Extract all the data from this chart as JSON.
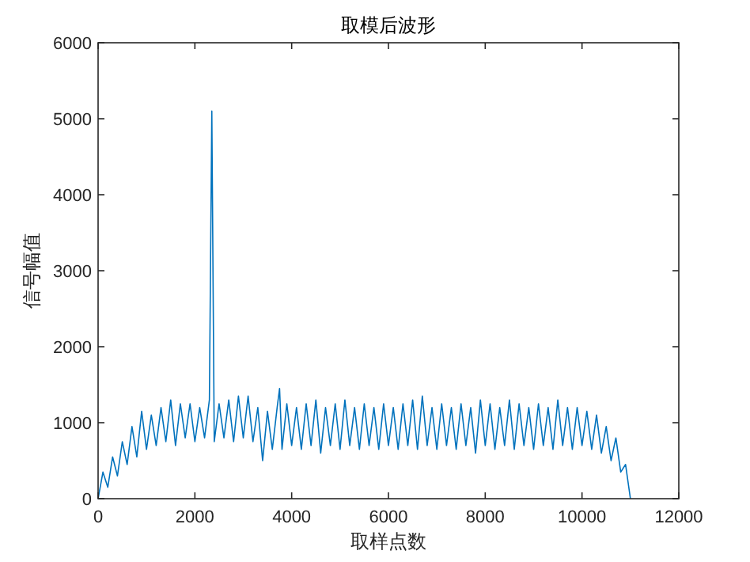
{
  "chart_data": {
    "type": "line",
    "title": "取模后波形",
    "xlabel": "取样点数",
    "ylabel": "信号幅值",
    "x": [
      0,
      100,
      200,
      300,
      400,
      500,
      600,
      700,
      800,
      900,
      1000,
      1100,
      1200,
      1300,
      1400,
      1500,
      1600,
      1700,
      1800,
      1900,
      2000,
      2100,
      2200,
      2300,
      2350,
      2400,
      2500,
      2600,
      2700,
      2800,
      2900,
      3000,
      3100,
      3200,
      3300,
      3400,
      3500,
      3600,
      3700,
      3750,
      3800,
      3900,
      4000,
      4100,
      4200,
      4300,
      4400,
      4500,
      4600,
      4700,
      4800,
      4900,
      5000,
      5100,
      5200,
      5300,
      5400,
      5500,
      5600,
      5700,
      5800,
      5900,
      6000,
      6100,
      6200,
      6300,
      6400,
      6500,
      6600,
      6700,
      6800,
      6900,
      7000,
      7100,
      7200,
      7300,
      7400,
      7500,
      7600,
      7700,
      7800,
      7900,
      8000,
      8100,
      8200,
      8300,
      8400,
      8500,
      8600,
      8700,
      8800,
      8900,
      9000,
      9100,
      9200,
      9300,
      9400,
      9500,
      9600,
      9700,
      9800,
      9900,
      10000,
      10100,
      10200,
      10300,
      10400,
      10500,
      10600,
      10700,
      10800,
      10900,
      11000
    ],
    "values": [
      0,
      350,
      150,
      550,
      300,
      750,
      450,
      950,
      550,
      1150,
      650,
      1100,
      700,
      1200,
      750,
      1300,
      700,
      1250,
      800,
      1250,
      750,
      1200,
      800,
      1300,
      5100,
      750,
      1250,
      800,
      1300,
      750,
      1350,
      800,
      1350,
      750,
      1200,
      500,
      1150,
      650,
      1200,
      1450,
      650,
      1250,
      700,
      1200,
      650,
      1250,
      700,
      1300,
      600,
      1200,
      700,
      1250,
      650,
      1300,
      700,
      1200,
      650,
      1250,
      700,
      1200,
      650,
      1250,
      700,
      1200,
      650,
      1250,
      700,
      1300,
      650,
      1350,
      700,
      1200,
      650,
      1250,
      700,
      1200,
      650,
      1250,
      700,
      1200,
      600,
      1300,
      700,
      1250,
      650,
      1200,
      700,
      1300,
      650,
      1250,
      700,
      1200,
      650,
      1250,
      700,
      1200,
      650,
      1300,
      700,
      1200,
      650,
      1200,
      700,
      1150,
      650,
      1100,
      600,
      950,
      500,
      800,
      350,
      450,
      0
    ],
    "color": "#0072bd",
    "xlim": [
      0,
      12000
    ],
    "ylim": [
      0,
      6000
    ],
    "xticks": [
      0,
      2000,
      4000,
      6000,
      8000,
      10000,
      12000
    ],
    "yticks": [
      0,
      1000,
      2000,
      3000,
      4000,
      5000,
      6000
    ]
  }
}
